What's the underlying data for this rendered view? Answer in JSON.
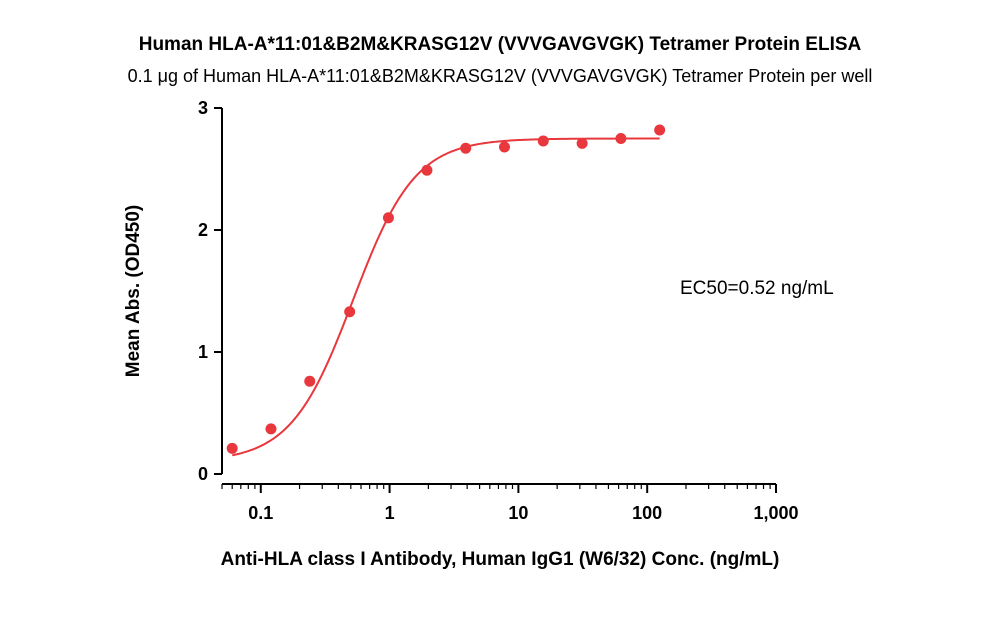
{
  "chart_data": {
    "type": "scatter",
    "title": "Human HLA-A*11:01&B2M&KRASG12V (VVVGAVGVGK) Tetramer Protein ELISA",
    "subtitle": "0.1 μg of Human HLA-A*11:01&B2M&KRASG12V (VVVGAVGVGK) Tetramer Protein per well",
    "xlabel": "Anti-HLA class I Antibody, Human IgG1 (W6/32) Conc. (ng/mL)",
    "ylabel": "Mean Abs. (OD450)",
    "x_scale": "log",
    "xlim": [
      0.05,
      1000
    ],
    "ylim": [
      0,
      3
    ],
    "x_ticks": [
      {
        "value": 0.1,
        "label": "0.1"
      },
      {
        "value": 1,
        "label": "1"
      },
      {
        "value": 10,
        "label": "10"
      },
      {
        "value": 100,
        "label": "100"
      },
      {
        "value": 1000,
        "label": "1,000"
      }
    ],
    "y_ticks": [
      {
        "value": 0,
        "label": "0"
      },
      {
        "value": 1,
        "label": "1"
      },
      {
        "value": 2,
        "label": "2"
      },
      {
        "value": 3,
        "label": "3"
      }
    ],
    "series": [
      {
        "color": "#e8383d",
        "x": [
          0.06,
          0.12,
          0.24,
          0.49,
          0.98,
          1.95,
          3.9,
          7.8,
          15.6,
          31.25,
          62.5,
          125
        ],
        "y": [
          0.21,
          0.37,
          0.76,
          1.33,
          2.1,
          2.49,
          2.67,
          2.68,
          2.73,
          2.71,
          2.75,
          2.82
        ]
      }
    ],
    "fit_curve": {
      "model": "4PL",
      "bottom": 0.1,
      "top": 2.75,
      "ec50": 0.52,
      "hill": 1.8
    },
    "annotations": [
      {
        "text": "EC50=0.52 ng/mL"
      }
    ],
    "grid": false,
    "legend": "none"
  }
}
